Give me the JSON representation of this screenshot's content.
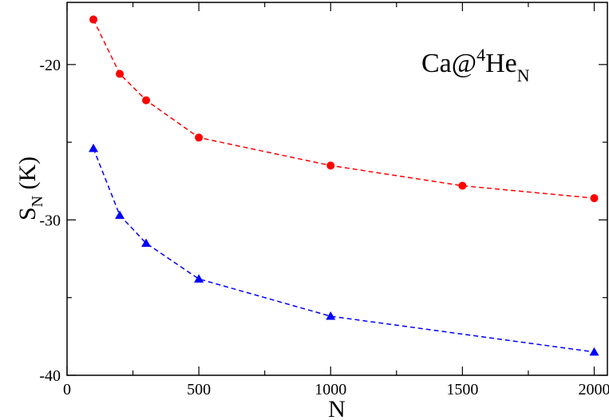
{
  "chart_data": {
    "type": "line",
    "annotation": {
      "main": "Ca@",
      "sup": "4",
      "base": "He",
      "sub": "N"
    },
    "xlabel": "N",
    "ylabel": {
      "main": "S",
      "sub": "N",
      "rest": " (K)"
    },
    "xlim": [
      0,
      2050
    ],
    "ylim": [
      -40,
      -16
    ],
    "xticks": [
      0,
      500,
      1000,
      1500,
      2000
    ],
    "yticks": [
      -40,
      -30,
      -20
    ],
    "grid": false,
    "series": [
      {
        "color": "#ff0000",
        "marker": "circle",
        "x": [
          100,
          200,
          300,
          500,
          1000,
          1500,
          2000
        ],
        "y": [
          -17.1,
          -20.6,
          -22.3,
          -24.7,
          -26.5,
          -27.8,
          -28.6
        ]
      },
      {
        "color": "#0000ff",
        "marker": "triangle",
        "x": [
          100,
          200,
          300,
          500,
          1000,
          2000
        ],
        "y": [
          -25.4,
          -29.7,
          -31.5,
          -33.8,
          -36.2,
          -38.5
        ]
      }
    ]
  }
}
